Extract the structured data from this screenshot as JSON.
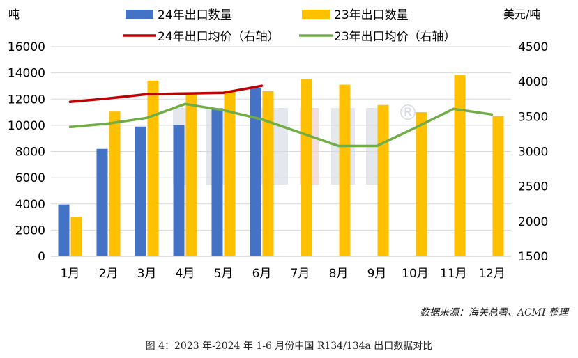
{
  "chart_data": {
    "type": "bar",
    "categories": [
      "1月",
      "2月",
      "3月",
      "4月",
      "5月",
      "6月",
      "7月",
      "8月",
      "9月",
      "10月",
      "11月",
      "12月"
    ],
    "y_left_label": "吨",
    "y_right_label": "美元/吨",
    "ylim_left": [
      0,
      16000
    ],
    "ylim_right": [
      1500,
      4500
    ],
    "yticks_left": [
      "0",
      "2000",
      "4000",
      "6000",
      "8000",
      "10000",
      "12000",
      "14000",
      "16000"
    ],
    "yticks_right": [
      "1500",
      "2000",
      "2500",
      "3000",
      "3500",
      "4000",
      "4500"
    ],
    "grid": true,
    "legend_position": "top",
    "series": [
      {
        "name": "24年出口数量",
        "kind": "bar",
        "axis": "left",
        "color": "#4472C4",
        "values": [
          3950,
          8200,
          9900,
          10000,
          11300,
          12850,
          null,
          null,
          null,
          null,
          null,
          null
        ]
      },
      {
        "name": "23年出口数量",
        "kind": "bar",
        "axis": "left",
        "color": "#FFC000",
        "values": [
          3000,
          11050,
          13400,
          12400,
          12650,
          12600,
          13500,
          13100,
          11550,
          11000,
          13850,
          10700
        ]
      },
      {
        "name": "24年出口均价（右轴）",
        "kind": "line",
        "axis": "right",
        "color": "#C00000",
        "values": [
          3710,
          3760,
          3820,
          3830,
          3840,
          3940,
          null,
          null,
          null,
          null,
          null,
          null
        ]
      },
      {
        "name": "23年出口均价（右轴）",
        "kind": "line",
        "axis": "right",
        "color": "#70AD47",
        "values": [
          3350,
          3400,
          3480,
          3680,
          3590,
          3460,
          3270,
          3080,
          3080,
          3340,
          3610,
          3530
        ]
      }
    ]
  },
  "watermark": "®",
  "source_note": "数据来源：海关总署、ACMI 整理",
  "caption": "图 4：2023 年-2024 年 1-6 月份中国 R134/134a 出口数据对比"
}
